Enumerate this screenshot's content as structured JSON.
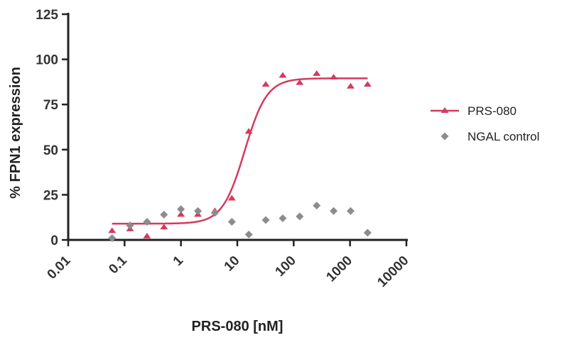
{
  "chart_data": {
    "type": "scatter",
    "title": "",
    "xlabel": "PRS-080 [nM]",
    "ylabel": "% FPN1 expression",
    "x_scale": "log",
    "xlim": [
      0.01,
      10000
    ],
    "ylim": [
      0,
      125
    ],
    "x_ticks": [
      0.01,
      0.1,
      1,
      10,
      100,
      1000,
      10000
    ],
    "x_tick_labels": [
      "0.01",
      "0.1",
      "1",
      "10",
      "100",
      "1000",
      "10000"
    ],
    "y_ticks": [
      0,
      25,
      50,
      75,
      100,
      125
    ],
    "y_tick_labels": [
      "0",
      "25",
      "50",
      "75",
      "100",
      "125"
    ],
    "grid": false,
    "legend_position": "right",
    "series": [
      {
        "name": "PRS-080",
        "marker": "triangle",
        "color": "#d33a5f",
        "x": [
          0.06,
          0.125,
          0.25,
          0.5,
          1,
          2,
          4,
          8,
          16,
          32,
          64,
          128,
          256,
          512,
          1024,
          2048
        ],
        "y": [
          5,
          6,
          2,
          7,
          14,
          14,
          16,
          23,
          60,
          86,
          91,
          87,
          92,
          90,
          85,
          86
        ],
        "fit": {
          "bottom": 9,
          "top": 89.5,
          "ec50": 13.5,
          "hill": 2.2,
          "x_range": [
            0.06,
            2048
          ]
        }
      },
      {
        "name": "NGAL control",
        "marker": "diamond",
        "color": "#8c8c8c",
        "x": [
          0.06,
          0.125,
          0.25,
          0.5,
          1,
          2,
          4,
          8,
          16,
          32,
          64,
          128,
          256,
          512,
          1024,
          2048
        ],
        "y": [
          1,
          8,
          10,
          14,
          17,
          16,
          15,
          10,
          3,
          11,
          12,
          13,
          19,
          16,
          16,
          4
        ]
      }
    ]
  }
}
